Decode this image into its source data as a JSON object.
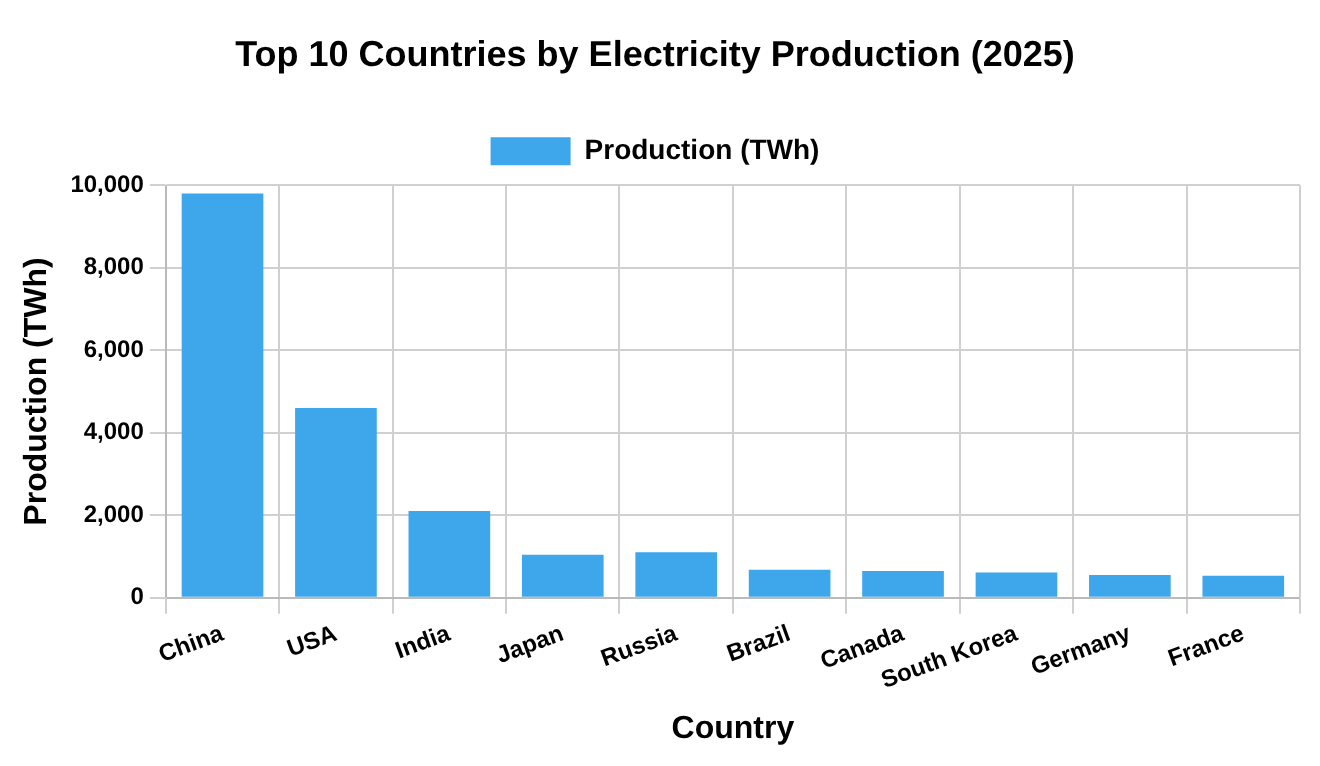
{
  "chart_data": {
    "type": "bar",
    "title": "Top 10 Countries by Electricity Production (2025)",
    "xlabel": "Country",
    "ylabel": "Production (TWh)",
    "categories": [
      "China",
      "USA",
      "India",
      "Japan",
      "Russia",
      "Brazil",
      "Canada",
      "South Korea",
      "Germany",
      "France"
    ],
    "series": [
      {
        "name": "Production (TWh)",
        "color": "#3ea6ea",
        "values": [
          9800,
          4600,
          2100,
          1040,
          1100,
          680,
          650,
          610,
          550,
          530
        ]
      }
    ],
    "ylim": [
      0,
      10000
    ],
    "yticks": [
      0,
      {
        "value": 2000,
        "label": "2,000"
      },
      {
        "value": 4000,
        "label": "4,000"
      },
      {
        "value": 6000,
        "label": "6,000"
      },
      {
        "value": 8000,
        "label": "8,000"
      },
      {
        "value": 10000,
        "label": "10,000"
      }
    ],
    "grid": true,
    "legend": "top"
  }
}
